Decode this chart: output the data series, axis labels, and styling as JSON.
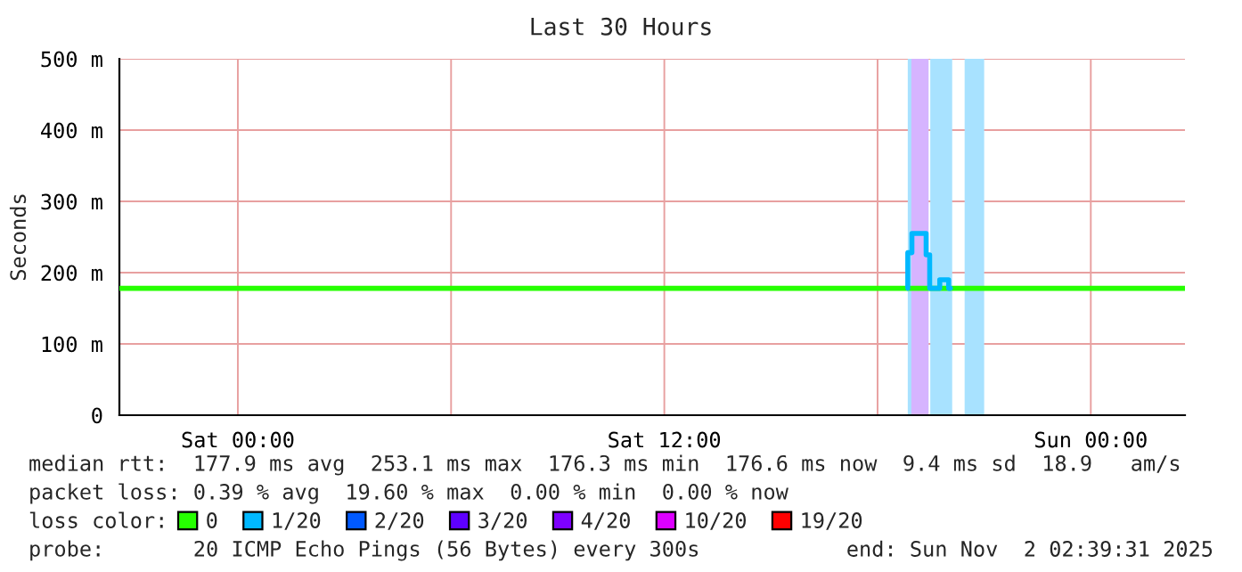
{
  "chart_data": {
    "type": "line",
    "title": "Last 30 Hours",
    "ylabel": "Seconds",
    "xlim": [
      "2025-10-31T20:40",
      "2025-11-02T02:39"
    ],
    "xticks": [
      {
        "value": "2025-11-01T00:00",
        "label": "Sat 00:00"
      },
      {
        "value": "2025-11-01T06:00",
        "label": null
      },
      {
        "value": "2025-11-01T12:00",
        "label": "Sat 12:00"
      },
      {
        "value": "2025-11-01T18:00",
        "label": null
      },
      {
        "value": "2025-11-02T00:00",
        "label": "Sun 00:00"
      }
    ],
    "ylim": [
      0,
      500
    ],
    "yticks": [
      0,
      {
        "value": 100,
        "label": "100 m"
      },
      {
        "value": 200,
        "label": "200 m"
      },
      {
        "value": 300,
        "label": "300 m"
      },
      {
        "value": 400,
        "label": "400 m"
      },
      {
        "value": 500,
        "label": "500 m"
      }
    ],
    "grid": true,
    "legend": "bottom",
    "legend_title": "loss color:",
    "series": [
      {
        "name": "0",
        "color": "#26ff00",
        "x": [
          "2025-10-31T20:40",
          "2025-11-01T18:51",
          "2025-11-01T18:54",
          "2025-11-01T20:03",
          "2025-11-02T02:39"
        ],
        "values": [
          178,
          178,
          null,
          178,
          178
        ]
      },
      {
        "name": "1/20",
        "color": "#00b8ff",
        "x": [
          "2025-11-01T18:51",
          "2025-11-01T18:51",
          "2025-11-01T18:58",
          "2025-11-01T18:58",
          "2025-11-01T19:22",
          "2025-11-01T19:22",
          "2025-11-01T19:28",
          "2025-11-01T19:28",
          "2025-11-01T19:45",
          "2025-11-01T19:45",
          "2025-11-01T20:00",
          "2025-11-01T20:00",
          "2025-11-01T20:03"
        ],
        "values": [
          178,
          228,
          228,
          255,
          255,
          225,
          225,
          178,
          178,
          190,
          190,
          178,
          178
        ]
      },
      {
        "name": "2/20",
        "color": "#0059ff"
      },
      {
        "name": "3/20",
        "color": "#5e00ff"
      },
      {
        "name": "4/20",
        "color": "#7e00ff"
      },
      {
        "name": "10/20",
        "color": "#dd00ff"
      },
      {
        "name": "19/20",
        "color": "#ff0000"
      }
    ],
    "bands": [
      {
        "axis": "x",
        "from": "2025-11-01T18:51",
        "to": "2025-11-01T19:26",
        "color": "#a8e2ff"
      },
      {
        "axis": "x",
        "from": "2025-11-01T18:57",
        "to": "2025-11-01T19:26",
        "color": "#d6b4ff"
      },
      {
        "axis": "x",
        "from": "2025-11-01T19:29",
        "to": "2025-11-01T20:06",
        "color": "#a8e2ff"
      },
      {
        "axis": "x",
        "from": "2025-11-01T20:27",
        "to": "2025-11-01T21:00",
        "color": "#a8e2ff"
      }
    ],
    "annotations": [
      "median rtt:  177.9 ms avg  253.1 ms max  176.3 ms min  176.6 ms now  9.4 ms sd  18.9   am/s",
      "packet loss: 0.39 % avg  19.60 % max  0.00 % min  0.00 % now",
      "probe:       20 ICMP Echo Pings (56 Bytes) every 300s",
      "end: Sun Nov  2 02:39:31 2025"
    ]
  }
}
